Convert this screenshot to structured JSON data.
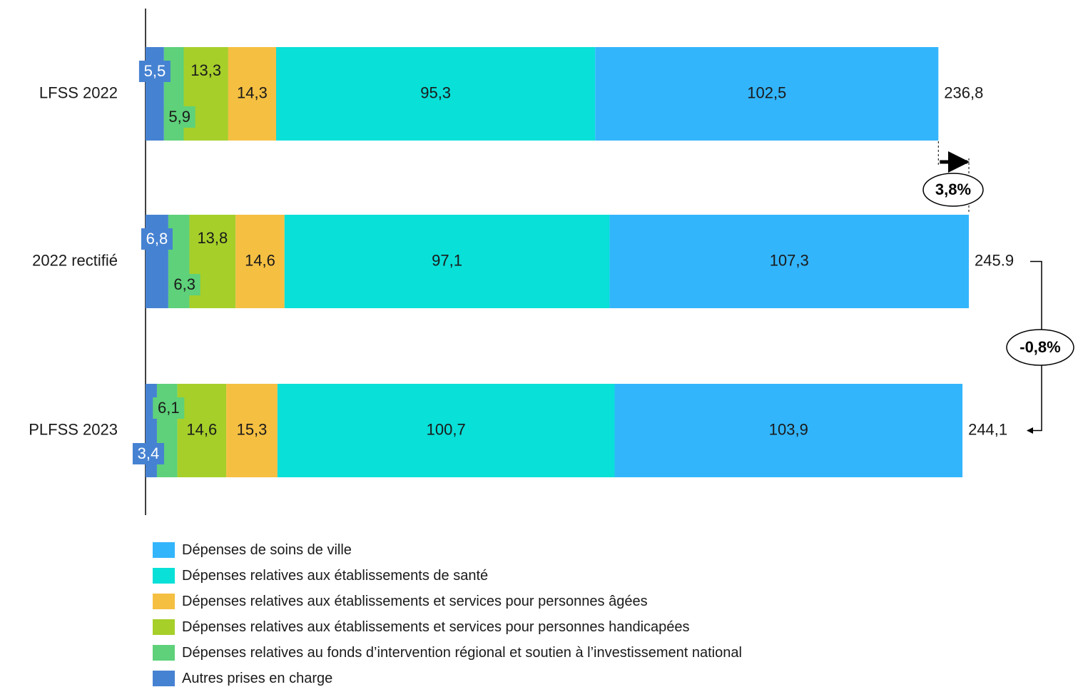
{
  "chart_data": {
    "type": "bar",
    "orientation": "horizontal",
    "stacked": true,
    "categories": [
      "LFSS 2022",
      "2022 rectifié",
      "PLFSS 2023"
    ],
    "series": [
      {
        "name": "Autres prises en charge",
        "color": "#4682d2",
        "values": [
          5.5,
          6.8,
          3.4
        ],
        "labels": [
          "5,5",
          "6,8",
          "3,4"
        ]
      },
      {
        "name": "Dépenses relatives au fonds d’intervention régional et soutien à l’investissement national",
        "color": "#5ed17a",
        "values": [
          5.9,
          6.3,
          6.1
        ],
        "labels": [
          "5,9",
          "6,3",
          "6,1"
        ]
      },
      {
        "name": "Dépenses relatives aux établissements et services pour personnes handicapées",
        "color": "#a6cf2a",
        "values": [
          13.3,
          13.8,
          14.6
        ],
        "labels": [
          "13,3",
          "13,8",
          "14,6"
        ]
      },
      {
        "name": "Dépenses relatives aux établissements et services pour personnes âgées",
        "color": "#f5bf42",
        "values": [
          14.3,
          14.6,
          15.3
        ],
        "labels": [
          "14,3",
          "14,6",
          "15,3"
        ]
      },
      {
        "name": "Dépenses relatives aux établissements de santé",
        "color": "#08e0d8",
        "values": [
          95.3,
          97.1,
          100.7
        ],
        "labels": [
          "95,3",
          "97,1",
          "100,7"
        ]
      },
      {
        "name": "Dépenses de soins de ville",
        "color": "#33b5fc",
        "values": [
          102.5,
          107.3,
          103.9
        ],
        "labels": [
          "102,5",
          "107,3",
          "103,9"
        ]
      }
    ],
    "totals": [
      236.8,
      245.9,
      244.1
    ],
    "total_labels": [
      "236,8",
      "245.9",
      "244,1"
    ],
    "annotations": [
      {
        "text": "3,8%",
        "from": "LFSS 2022",
        "to": "2022 rectifié"
      },
      {
        "text": "-0,8%",
        "from": "2022 rectifié",
        "to": "PLFSS 2023"
      }
    ],
    "title": "",
    "xlabel": "",
    "ylabel": "",
    "xlim": [
      0,
      245.9
    ],
    "grid": false,
    "legend_position": "bottom",
    "legend_order": [
      "Dépenses de soins de ville",
      "Dépenses relatives aux établissements de santé",
      "Dépenses relatives aux établissements et services pour personnes âgées",
      "Dépenses relatives aux établissements et services pour personnes handicapées",
      "Dépenses relatives au fonds d’intervention régional et soutien à l’investissement national",
      "Autres prises en charge"
    ]
  }
}
